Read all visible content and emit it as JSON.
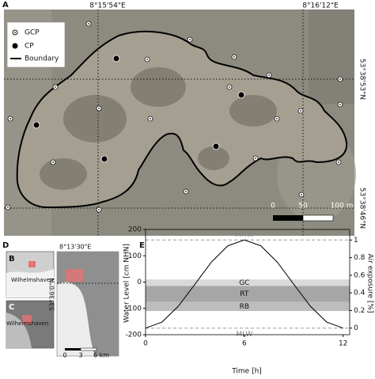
{
  "map": {
    "label": "A",
    "lon_labels": [
      "8°15'54\"E",
      "8°16'12\"E"
    ],
    "lat_labels": [
      "53°38'53\"N",
      "53°38'46\"N"
    ],
    "legend": [
      "GCP",
      "CP",
      "Boundary"
    ],
    "scalebar": [
      "0",
      "50",
      "100 m"
    ]
  },
  "inset": {
    "label": "D",
    "panel_b": "B",
    "panel_c": "C",
    "city_b": "Wilhelmshaven",
    "city_c": "Wilhelmshaven",
    "lon_label": "8°13'30\"E",
    "lat_label": "53°36'0\"N",
    "scalebar": [
      "0",
      "3",
      "6 km"
    ]
  },
  "chart_data": {
    "type": "line",
    "label": "E",
    "xlabel": "Time [h]",
    "ylabel": "Water Level [cm NHN]",
    "y2label": "Air exposure [%]",
    "x": [
      0,
      1,
      2,
      3,
      4,
      5,
      6,
      7,
      8,
      9,
      10,
      11,
      12
    ],
    "series": [
      {
        "color": "#000000",
        "values": [
          -175,
          -152,
          -91,
          -8,
          76,
          138,
          160,
          138,
          76,
          -8,
          -91,
          -152,
          -175
        ]
      }
    ],
    "xlim": [
      0,
      12.4
    ],
    "ylim": [
      -200,
      200
    ],
    "y2lim": [
      -0.075,
      1.12
    ],
    "xticks": [
      0,
      6,
      12
    ],
    "yticks": [
      -200,
      -100,
      0,
      100,
      200
    ],
    "y2ticks": [
      0,
      0.2,
      0.4,
      0.6,
      0.8,
      1
    ],
    "reference_lines": [
      {
        "label": "MHW",
        "value": 160
      },
      {
        "label": "MLW",
        "value": -175
      }
    ],
    "zones": [
      {
        "label": "GC",
        "range": [
          -15,
          10
        ],
        "color": "#d9d9d9"
      },
      {
        "label": "RT",
        "range": [
          -75,
          -15
        ],
        "color": "#a6a6a6"
      },
      {
        "label": "RB",
        "range": [
          -110,
          -75
        ],
        "color": "#bdbdbd"
      }
    ]
  }
}
